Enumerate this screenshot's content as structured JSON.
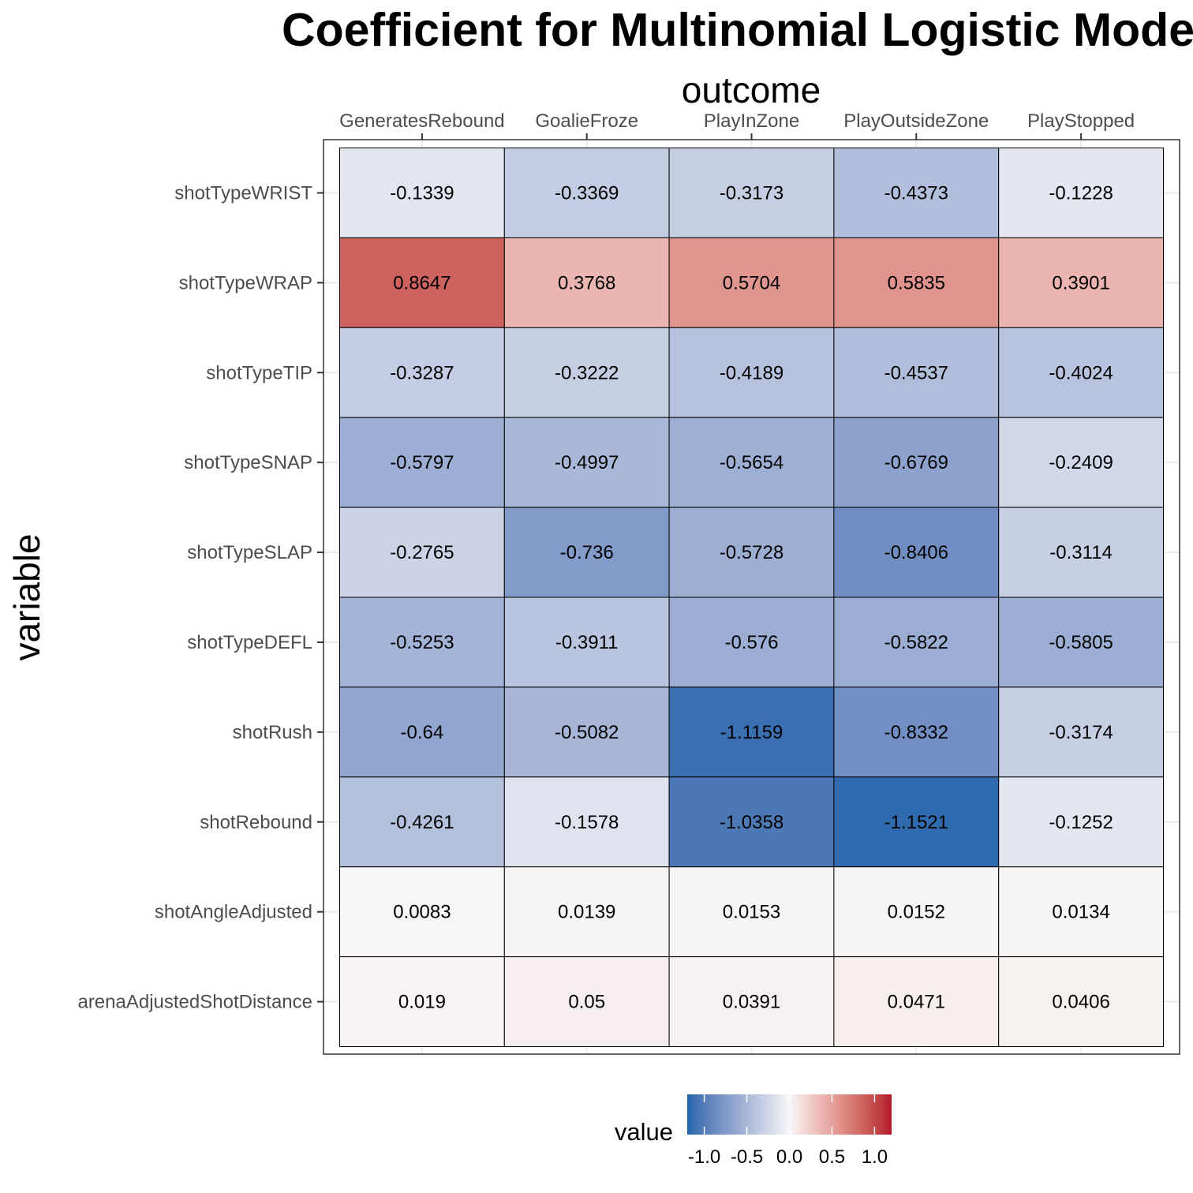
{
  "chart_data": {
    "type": "heatmap",
    "title": "Coefficient for Multinomial Logistic Model",
    "xlabel": "outcome",
    "ylabel": "variable",
    "x_axis_position": "top",
    "categories": [
      "GeneratesRebound",
      "GoalieFroze",
      "PlayInZone",
      "PlayOutsideZone",
      "PlayStopped"
    ],
    "rows": [
      "shotTypeWRIST",
      "shotTypeWRAP",
      "shotTypeTIP",
      "shotTypeSNAP",
      "shotTypeSLAP",
      "shotTypeDEFL",
      "shotRush",
      "shotRebound",
      "shotAngleAdjusted",
      "arenaAdjustedShotDistance"
    ],
    "values": [
      [
        -0.1339,
        -0.3369,
        -0.3173,
        -0.4373,
        -0.1228
      ],
      [
        0.8647,
        0.3768,
        0.5704,
        0.5835,
        0.3901
      ],
      [
        -0.3287,
        -0.3222,
        -0.4189,
        -0.4537,
        -0.4024
      ],
      [
        -0.5797,
        -0.4997,
        -0.5654,
        -0.6769,
        -0.2409
      ],
      [
        -0.2765,
        -0.736,
        -0.5728,
        -0.8406,
        -0.3114
      ],
      [
        -0.5253,
        -0.3911,
        -0.576,
        -0.5822,
        -0.5805
      ],
      [
        -0.64,
        -0.5082,
        -1.1159,
        -0.8332,
        -0.3174
      ],
      [
        -0.4261,
        -0.1578,
        -1.0358,
        -1.1521,
        -0.1252
      ],
      [
        0.0083,
        0.0139,
        0.0153,
        0.0152,
        0.0134
      ],
      [
        0.019,
        0.05,
        0.0391,
        0.0471,
        0.0406
      ]
    ],
    "value_labels": [
      [
        "-0.1339",
        "-0.3369",
        "-0.3173",
        "-0.4373",
        "-0.1228"
      ],
      [
        "0.8647",
        "0.3768",
        "0.5704",
        "0.5835",
        "0.3901"
      ],
      [
        "-0.3287",
        "-0.3222",
        "-0.4189",
        "-0.4537",
        "-0.4024"
      ],
      [
        "-0.5797",
        "-0.4997",
        "-0.5654",
        "-0.6769",
        "-0.2409"
      ],
      [
        "-0.2765",
        "-0.736",
        "-0.5728",
        "-0.8406",
        "-0.3114"
      ],
      [
        "-0.5253",
        "-0.3911",
        "-0.576",
        "-0.5822",
        "-0.5805"
      ],
      [
        "-0.64",
        "-0.5082",
        "-1.1159",
        "-0.8332",
        "-0.3174"
      ],
      [
        "-0.4261",
        "-0.1578",
        "-1.0358",
        "-1.1521",
        "-0.1252"
      ],
      [
        "0.0083",
        "0.0139",
        "0.0153",
        "0.0152",
        "0.0134"
      ],
      [
        "0.019",
        "0.05",
        "0.0391",
        "0.0471",
        "0.0406"
      ]
    ],
    "color_scale": {
      "type": "diverging",
      "name": "value",
      "limits": [
        -1.2,
        1.2
      ],
      "low_color": "#2166ac",
      "mid_color": "#f7f7f7",
      "high_color": "#b2182b",
      "legend_ticks": [
        "-1.0",
        "-0.5",
        "0.0",
        "0.5",
        "1.0"
      ],
      "legend_tick_values": [
        -1.0,
        -0.5,
        0.0,
        0.5,
        1.0
      ]
    },
    "legend_position": "bottom",
    "grid": true
  }
}
